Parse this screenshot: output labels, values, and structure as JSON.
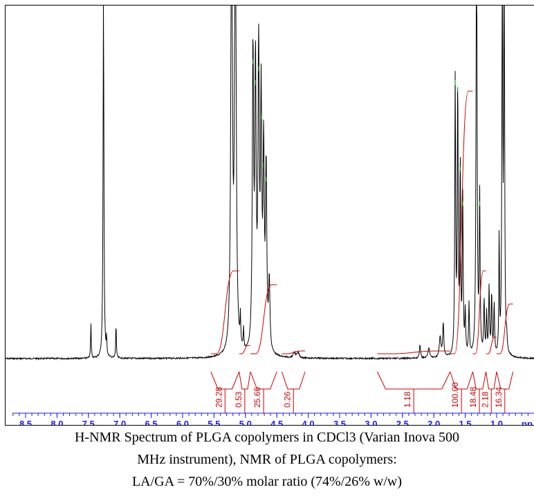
{
  "chart_data": {
    "type": "line",
    "title": "",
    "xlabel": "ppm",
    "x_axis_reversed": true,
    "xlim": [
      8.7,
      -0.15
    ],
    "x_ticks": [
      {
        "value": 8.5,
        "label": "8.5"
      },
      {
        "value": 8.0,
        "label": "8.0"
      },
      {
        "value": 7.5,
        "label": "7.5"
      },
      {
        "value": 7.0,
        "label": "7.0"
      },
      {
        "value": 6.5,
        "label": "6.5"
      },
      {
        "value": 6.0,
        "label": "6.0"
      },
      {
        "value": 5.5,
        "label": "5.5"
      },
      {
        "value": 5.0,
        "label": "5.0"
      },
      {
        "value": 4.5,
        "label": "4.5"
      },
      {
        "value": 4.0,
        "label": "4.0"
      },
      {
        "value": 3.5,
        "label": "3.5"
      },
      {
        "value": 3.0,
        "label": "3.0"
      },
      {
        "value": 2.5,
        "label": "2.5"
      },
      {
        "value": 2.0,
        "label": "2.0"
      },
      {
        "value": 1.5,
        "label": "1.5"
      },
      {
        "value": 1.0,
        "label": "1.0"
      }
    ],
    "axis_unit_label": "pp",
    "peaks": [
      {
        "ppm": 7.46,
        "height": 0.1,
        "width": 0.006
      },
      {
        "ppm": 7.26,
        "height": 1.05,
        "width": 0.008
      },
      {
        "ppm": 7.21,
        "height": 0.05,
        "width": 0.005
      },
      {
        "ppm": 7.06,
        "height": 0.1,
        "width": 0.006
      },
      {
        "ppm": 5.22,
        "height": 1.4,
        "width": 0.014
      },
      {
        "ppm": 5.16,
        "height": 1.4,
        "width": 0.014
      },
      {
        "ppm": 5.08,
        "height": 0.08,
        "width": 0.006
      },
      {
        "ppm": 5.03,
        "height": 0.06,
        "width": 0.006
      },
      {
        "ppm": 4.88,
        "height": 0.86,
        "width": 0.012
      },
      {
        "ppm": 4.84,
        "height": 0.8,
        "width": 0.012
      },
      {
        "ppm": 4.79,
        "height": 0.84,
        "width": 0.012
      },
      {
        "ppm": 4.75,
        "height": 0.7,
        "width": 0.012
      },
      {
        "ppm": 4.71,
        "height": 0.56,
        "width": 0.012
      },
      {
        "ppm": 4.67,
        "height": 0.52,
        "width": 0.012
      },
      {
        "ppm": 4.62,
        "height": 0.2,
        "width": 0.012
      },
      {
        "ppm": 4.22,
        "height": 0.015,
        "width": 0.02
      },
      {
        "ppm": 4.16,
        "height": 0.015,
        "width": 0.02
      },
      {
        "ppm": 2.22,
        "height": 0.04,
        "width": 0.01
      },
      {
        "ppm": 2.08,
        "height": 0.03,
        "width": 0.015
      },
      {
        "ppm": 1.9,
        "height": 0.06,
        "width": 0.015
      },
      {
        "ppm": 1.85,
        "height": 0.1,
        "width": 0.01
      },
      {
        "ppm": 1.66,
        "height": 0.8,
        "width": 0.008
      },
      {
        "ppm": 1.62,
        "height": 0.78,
        "width": 0.008
      },
      {
        "ppm": 1.58,
        "height": 0.55,
        "width": 0.008
      },
      {
        "ppm": 1.54,
        "height": 0.45,
        "width": 0.008
      },
      {
        "ppm": 1.5,
        "height": 0.12,
        "width": 0.008
      },
      {
        "ppm": 1.44,
        "height": 0.15,
        "width": 0.008
      },
      {
        "ppm": 1.32,
        "height": 1.4,
        "width": 0.009
      },
      {
        "ppm": 1.27,
        "height": 0.45,
        "width": 0.008
      },
      {
        "ppm": 1.2,
        "height": 0.16,
        "width": 0.008
      },
      {
        "ppm": 1.16,
        "height": 0.12,
        "width": 0.008
      },
      {
        "ppm": 1.12,
        "height": 0.2,
        "width": 0.008
      },
      {
        "ppm": 1.08,
        "height": 0.18,
        "width": 0.008
      },
      {
        "ppm": 1.04,
        "height": 0.15,
        "width": 0.008
      },
      {
        "ppm": 0.96,
        "height": 0.35,
        "width": 0.006
      },
      {
        "ppm": 0.91,
        "height": 1.4,
        "width": 0.007
      },
      {
        "ppm": 0.88,
        "height": 1.4,
        "width": 0.007
      },
      {
        "ppm": 0.84,
        "height": 0.04,
        "width": 0.008
      }
    ],
    "integrals": [
      {
        "label": "29.28",
        "from_ppm": 5.55,
        "to_ppm": 5.1,
        "start_level": 0.0,
        "end_level": 0.3
      },
      {
        "label": "0.53",
        "from_ppm": 5.1,
        "to_ppm": 4.92,
        "start_level": 0.0,
        "end_level": 0.03
      },
      {
        "label": "25.66",
        "from_ppm": 4.92,
        "to_ppm": 4.5,
        "start_level": 0.0,
        "end_level": 0.25
      },
      {
        "label": "0.26",
        "from_ppm": 4.42,
        "to_ppm": 4.05,
        "start_level": 0.0,
        "end_level": 0.01
      },
      {
        "label": "1.18",
        "from_ppm": 2.9,
        "to_ppm": 1.74,
        "start_level": 0.0,
        "end_level": 0.01
      },
      {
        "label": "100.00",
        "from_ppm": 1.74,
        "to_ppm": 1.38,
        "start_level": 0.0,
        "end_level": 0.95
      },
      {
        "label": "18.48",
        "from_ppm": 1.38,
        "to_ppm": 1.17,
        "start_level": 0.0,
        "end_level": 0.3
      },
      {
        "label": "2.18",
        "from_ppm": 1.17,
        "to_ppm": 1.0,
        "start_level": 0.0,
        "end_level": 0.06
      },
      {
        "label": "16.34",
        "from_ppm": 1.0,
        "to_ppm": 0.74,
        "start_level": 0.0,
        "end_level": 0.18
      }
    ],
    "grid": false,
    "legend": "none"
  },
  "colors": {
    "spectrum": "#000000",
    "integral": "#cc0000",
    "axis": "#1a1aff",
    "peak_marker": "#00cc00"
  },
  "caption": {
    "line1": "H-NMR Spectrum of PLGA copolymers in CDCl3 (Varian Inova 500",
    "line2": "MHz instrument), NMR of PLGA copolymers:",
    "line3": "LA/GA = 70%/30% molar ratio (74%/26% w/w)"
  }
}
